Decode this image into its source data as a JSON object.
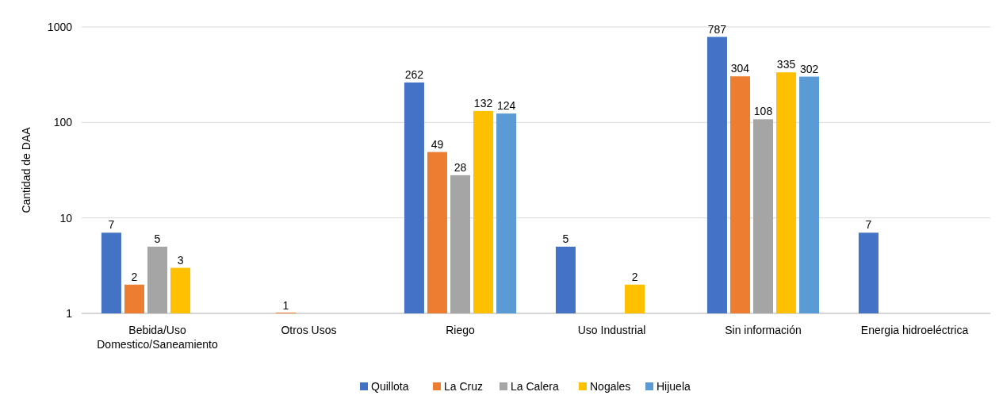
{
  "chart_data": {
    "type": "bar",
    "ylabel": "Cantidad de DAA",
    "categories": [
      "Bebida/Uso Domestico/Saneamiento",
      "Otros Usos",
      "Riego",
      "Uso Industrial",
      "Sin información",
      "Energia hidroeléctrica"
    ],
    "series": [
      {
        "name": "Quillota",
        "color": "#4472c4",
        "values": [
          7,
          null,
          262,
          5,
          787,
          7
        ]
      },
      {
        "name": "La Cruz",
        "color": "#ed7d31",
        "values": [
          2,
          1,
          49,
          null,
          304,
          null
        ]
      },
      {
        "name": "La Calera",
        "color": "#a5a5a5",
        "values": [
          5,
          null,
          28,
          null,
          108,
          null
        ]
      },
      {
        "name": "Nogales",
        "color": "#ffc000",
        "values": [
          3,
          null,
          132,
          2,
          335,
          null
        ]
      },
      {
        "name": "Hijuela",
        "color": "#5b9bd5",
        "values": [
          null,
          null,
          124,
          null,
          302,
          null
        ]
      }
    ],
    "log": true,
    "ylim": [
      1,
      1000
    ],
    "yticks": [
      1,
      10,
      100,
      1000
    ],
    "grid": "y",
    "legend": "bottom",
    "data_labels": true
  }
}
